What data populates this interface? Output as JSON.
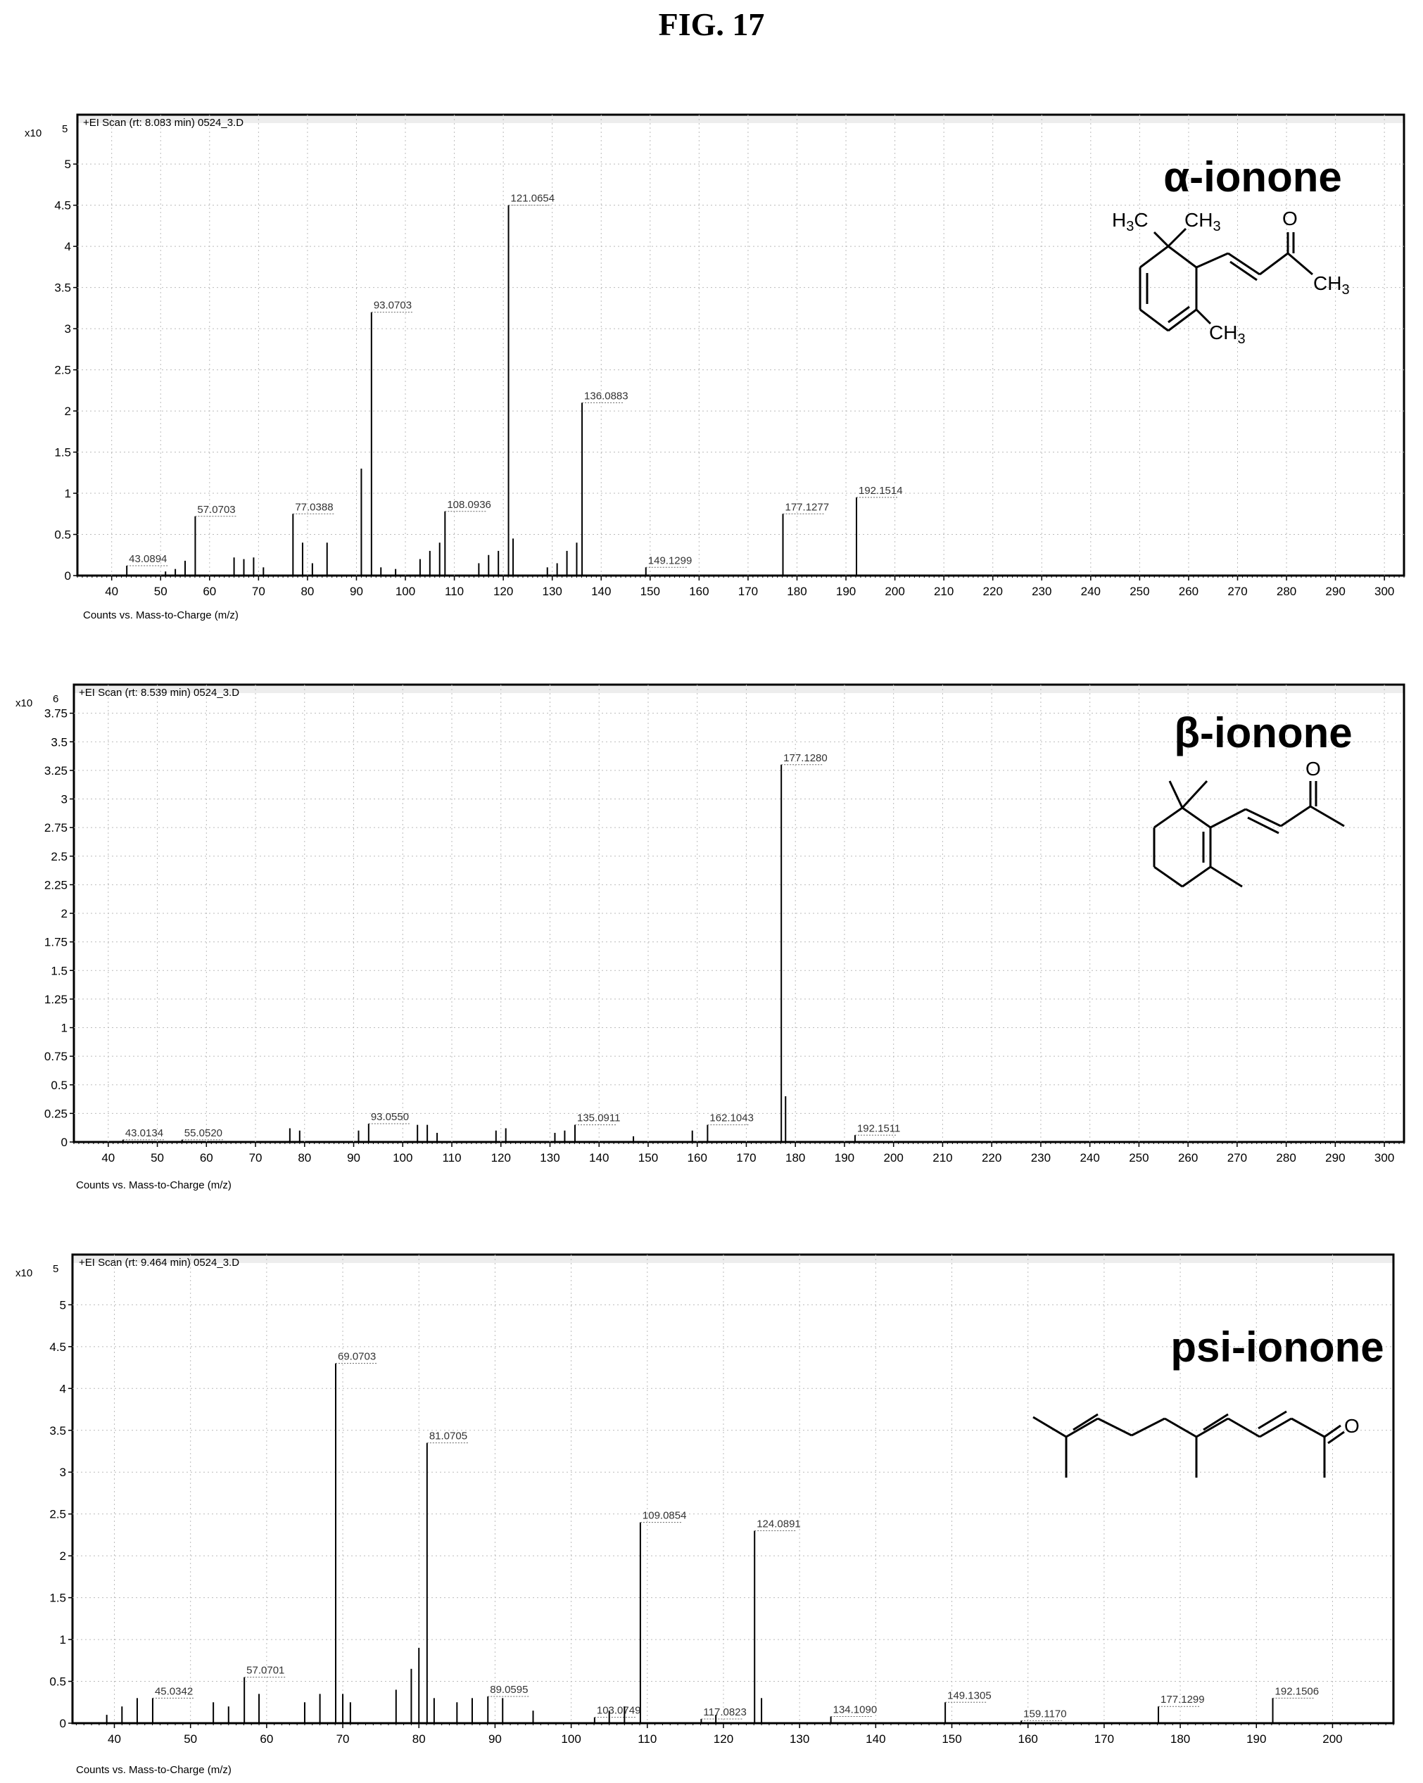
{
  "figure_title": "FIG. 17",
  "chart_data": [
    {
      "type": "bar",
      "header": "+EI Scan (rt: 8.083 min) 0524_3.D",
      "scale_label": "x10",
      "scale_exp": "5",
      "xlabel": "Counts vs. Mass-to-Charge (m/z)",
      "compound": "α-ionone",
      "xlim": [
        33,
        304
      ],
      "ylim": [
        0,
        5.6
      ],
      "xticks": [
        40,
        50,
        60,
        70,
        80,
        90,
        100,
        110,
        120,
        130,
        140,
        150,
        160,
        170,
        180,
        190,
        200,
        210,
        220,
        230,
        240,
        250,
        260,
        270,
        280,
        290,
        300
      ],
      "yticks": [
        0,
        0.5,
        1,
        1.5,
        2,
        2.5,
        3,
        3.5,
        4,
        4.5,
        5
      ],
      "peaks": [
        {
          "x": 43.0894,
          "y": 0.12,
          "label": "43.0894"
        },
        {
          "x": 51,
          "y": 0.05
        },
        {
          "x": 53,
          "y": 0.08
        },
        {
          "x": 55,
          "y": 0.18
        },
        {
          "x": 57.0703,
          "y": 0.72,
          "label": "57.0703"
        },
        {
          "x": 65,
          "y": 0.22
        },
        {
          "x": 67,
          "y": 0.2
        },
        {
          "x": 69,
          "y": 0.22
        },
        {
          "x": 71,
          "y": 0.1
        },
        {
          "x": 77.0388,
          "y": 0.75,
          "label": "77.0388"
        },
        {
          "x": 79,
          "y": 0.4
        },
        {
          "x": 81,
          "y": 0.15
        },
        {
          "x": 84,
          "y": 0.4
        },
        {
          "x": 91,
          "y": 1.3
        },
        {
          "x": 93.0703,
          "y": 3.2,
          "label": "93.0703"
        },
        {
          "x": 95,
          "y": 0.1
        },
        {
          "x": 98,
          "y": 0.08
        },
        {
          "x": 103,
          "y": 0.2
        },
        {
          "x": 105,
          "y": 0.3
        },
        {
          "x": 107,
          "y": 0.4
        },
        {
          "x": 108.0936,
          "y": 0.78,
          "label": "108.0936"
        },
        {
          "x": 115,
          "y": 0.15
        },
        {
          "x": 117,
          "y": 0.25
        },
        {
          "x": 119,
          "y": 0.3
        },
        {
          "x": 121.0654,
          "y": 4.5,
          "label": "121.0654"
        },
        {
          "x": 122,
          "y": 0.45
        },
        {
          "x": 129,
          "y": 0.1
        },
        {
          "x": 131,
          "y": 0.15
        },
        {
          "x": 133,
          "y": 0.3
        },
        {
          "x": 135,
          "y": 0.4
        },
        {
          "x": 136.0883,
          "y": 2.1,
          "label": "136.0883"
        },
        {
          "x": 149.1299,
          "y": 0.1,
          "label": "149.1299"
        },
        {
          "x": 177.1277,
          "y": 0.75,
          "label": "177.1277"
        },
        {
          "x": 192.1514,
          "y": 0.95,
          "label": "192.1514"
        }
      ]
    },
    {
      "type": "bar",
      "header": "+EI Scan (rt: 8.539 min) 0524_3.D",
      "scale_label": "x10",
      "scale_exp": "6",
      "xlabel": "Counts vs. Mass-to-Charge (m/z)",
      "compound": "β-ionone",
      "xlim": [
        33,
        304
      ],
      "ylim": [
        0,
        4.0
      ],
      "xticks": [
        40,
        50,
        60,
        70,
        80,
        90,
        100,
        110,
        120,
        130,
        140,
        150,
        160,
        170,
        180,
        190,
        200,
        210,
        220,
        230,
        240,
        250,
        260,
        270,
        280,
        290,
        300
      ],
      "yticks": [
        0,
        0.25,
        0.5,
        0.75,
        1,
        1.25,
        1.5,
        1.75,
        2,
        2.25,
        2.5,
        2.75,
        3,
        3.25,
        3.5,
        3.75
      ],
      "peaks": [
        {
          "x": 43.0134,
          "y": 0.02,
          "label": "43.0134"
        },
        {
          "x": 55.052,
          "y": 0.02,
          "label": "55.0520"
        },
        {
          "x": 77,
          "y": 0.12
        },
        {
          "x": 79,
          "y": 0.1
        },
        {
          "x": 91,
          "y": 0.1
        },
        {
          "x": 93.055,
          "y": 0.16,
          "label": "93.0550"
        },
        {
          "x": 103,
          "y": 0.15
        },
        {
          "x": 105,
          "y": 0.15
        },
        {
          "x": 107,
          "y": 0.08
        },
        {
          "x": 119,
          "y": 0.1
        },
        {
          "x": 121,
          "y": 0.12
        },
        {
          "x": 131,
          "y": 0.08
        },
        {
          "x": 133,
          "y": 0.1
        },
        {
          "x": 135.0911,
          "y": 0.15,
          "label": "135.0911"
        },
        {
          "x": 147,
          "y": 0.05
        },
        {
          "x": 159,
          "y": 0.1
        },
        {
          "x": 162.1043,
          "y": 0.15,
          "label": "162.1043"
        },
        {
          "x": 177.128,
          "y": 3.3,
          "label": "177.1280"
        },
        {
          "x": 178,
          "y": 0.4
        },
        {
          "x": 192.1511,
          "y": 0.06,
          "label": "192.1511"
        }
      ]
    },
    {
      "type": "bar",
      "header": "+EI Scan (rt: 9.464 min) 0524_3.D",
      "scale_label": "x10",
      "scale_exp": "5",
      "xlabel": "Counts vs. Mass-to-Charge (m/z)",
      "compound": "psi-ionone",
      "xlim": [
        34.5,
        208
      ],
      "ylim": [
        0,
        5.6
      ],
      "xticks": [
        40,
        50,
        60,
        70,
        80,
        90,
        100,
        110,
        120,
        130,
        140,
        150,
        160,
        170,
        180,
        190,
        200
      ],
      "yticks": [
        0,
        0.5,
        1,
        1.5,
        2,
        2.5,
        3,
        3.5,
        4,
        4.5,
        5
      ],
      "peaks": [
        {
          "x": 39,
          "y": 0.1
        },
        {
          "x": 41,
          "y": 0.2
        },
        {
          "x": 43,
          "y": 0.3
        },
        {
          "x": 45.0342,
          "y": 0.3,
          "label": "45.0342"
        },
        {
          "x": 53,
          "y": 0.25
        },
        {
          "x": 55,
          "y": 0.2
        },
        {
          "x": 57.0701,
          "y": 0.55,
          "label": "57.0701"
        },
        {
          "x": 59,
          "y": 0.35
        },
        {
          "x": 65,
          "y": 0.25
        },
        {
          "x": 67,
          "y": 0.35
        },
        {
          "x": 69.0703,
          "y": 4.3,
          "label": "69.0703"
        },
        {
          "x": 70,
          "y": 0.35
        },
        {
          "x": 71,
          "y": 0.25
        },
        {
          "x": 77,
          "y": 0.4
        },
        {
          "x": 79,
          "y": 0.65
        },
        {
          "x": 80,
          "y": 0.9
        },
        {
          "x": 81.0705,
          "y": 3.35,
          "label": "81.0705"
        },
        {
          "x": 82,
          "y": 0.3
        },
        {
          "x": 85,
          "y": 0.25
        },
        {
          "x": 87,
          "y": 0.3
        },
        {
          "x": 89.0595,
          "y": 0.32,
          "label": "89.0595"
        },
        {
          "x": 91,
          "y": 0.3
        },
        {
          "x": 95,
          "y": 0.15
        },
        {
          "x": 103.0749,
          "y": 0.07,
          "label": "103.0749"
        },
        {
          "x": 105,
          "y": 0.15
        },
        {
          "x": 107,
          "y": 0.2
        },
        {
          "x": 109.0854,
          "y": 2.4,
          "label": "109.0854"
        },
        {
          "x": 117.0823,
          "y": 0.05,
          "label": "117.0823"
        },
        {
          "x": 119,
          "y": 0.1
        },
        {
          "x": 124.0891,
          "y": 2.3,
          "label": "124.0891"
        },
        {
          "x": 125,
          "y": 0.3
        },
        {
          "x": 134.109,
          "y": 0.08,
          "label": "134.1090"
        },
        {
          "x": 149.1305,
          "y": 0.25,
          "label": "149.1305"
        },
        {
          "x": 159.117,
          "y": 0.03,
          "label": "159.1170"
        },
        {
          "x": 177.1299,
          "y": 0.2,
          "label": "177.1299"
        },
        {
          "x": 192.1506,
          "y": 0.3,
          "label": "192.1506"
        }
      ]
    }
  ],
  "structures": {
    "alpha": {
      "h3c": "H",
      "h3c_sub": "3",
      "h3c_c": "C",
      "ch3_a": "CH",
      "ch3_a_sub": "3",
      "o": "O",
      "ch3_b": "CH",
      "ch3_b_sub": "3",
      "ch3_c": "CH",
      "ch3_c_sub": "3"
    },
    "beta": {
      "o": "O"
    },
    "psi": {
      "o": "O"
    }
  }
}
